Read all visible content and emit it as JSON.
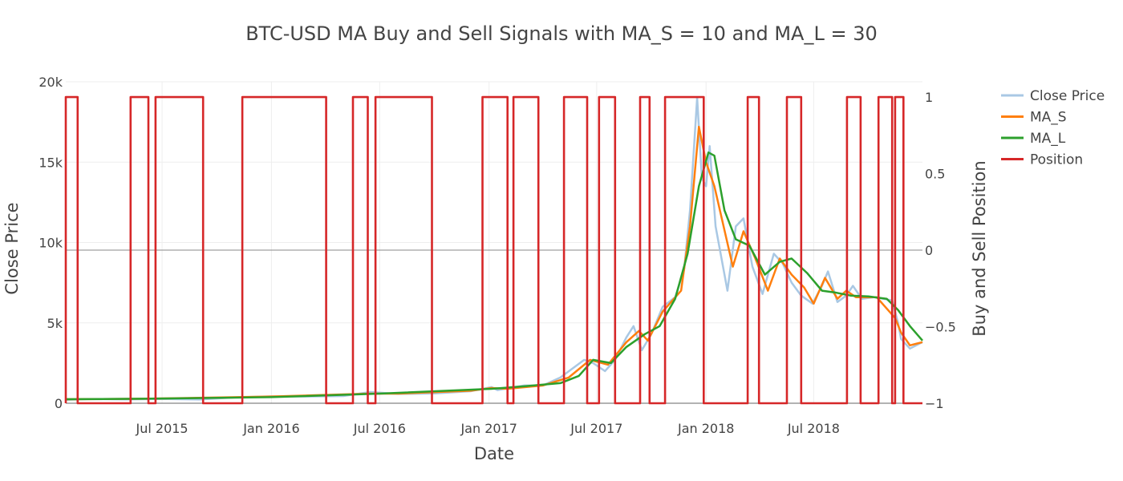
{
  "chart_data": {
    "type": "line",
    "title": "BTC-USD MA Buy and Sell Signals with MA_S = 10 and MA_L = 30",
    "xlabel": "Date",
    "ylabel": "Close Price",
    "y2label": "Buy and Sell Position",
    "xlim": [
      "2015-01-20",
      "2018-12-31"
    ],
    "ylim": [
      0,
      20000
    ],
    "y2lim": [
      -1,
      1.1
    ],
    "x_ticks": [
      "Jul 2015",
      "Jan 2016",
      "Jul 2016",
      "Jan 2017",
      "Jul 2017",
      "Jan 2018",
      "Jul 2018"
    ],
    "y_ticks": [
      "0",
      "5k",
      "10k",
      "15k",
      "20k"
    ],
    "y2_ticks": [
      "−1",
      "−0.5",
      "0",
      "0.5",
      "1"
    ],
    "grid": true,
    "legend": "right",
    "colors": {
      "close": "#a9c8e4",
      "ma_s": "#ff7f0e",
      "ma_l": "#2ca02c",
      "position": "#d62728"
    },
    "series": [
      {
        "name": "Close Price",
        "axis": "y",
        "x": [
          "2015-01-20",
          "2015-03-01",
          "2015-05-01",
          "2015-07-01",
          "2015-09-01",
          "2015-11-01",
          "2016-01-01",
          "2016-03-01",
          "2016-05-01",
          "2016-06-15",
          "2016-08-01",
          "2016-10-01",
          "2016-12-01",
          "2017-01-05",
          "2017-01-15",
          "2017-03-01",
          "2017-04-01",
          "2017-05-01",
          "2017-06-10",
          "2017-06-25",
          "2017-07-15",
          "2017-08-01",
          "2017-08-20",
          "2017-09-01",
          "2017-09-15",
          "2017-10-01",
          "2017-10-20",
          "2017-11-10",
          "2017-11-25",
          "2017-12-05",
          "2017-12-17",
          "2017-12-25",
          "2018-01-01",
          "2018-01-07",
          "2018-01-17",
          "2018-02-06",
          "2018-02-20",
          "2018-03-05",
          "2018-03-20",
          "2018-04-06",
          "2018-04-25",
          "2018-05-10",
          "2018-05-25",
          "2018-06-10",
          "2018-06-29",
          "2018-07-15",
          "2018-07-25",
          "2018-08-10",
          "2018-08-25",
          "2018-09-05",
          "2018-09-20",
          "2018-10-10",
          "2018-11-10",
          "2018-11-20",
          "2018-11-25",
          "2018-12-10",
          "2018-12-31"
        ],
        "values": [
          210,
          260,
          240,
          270,
          230,
          360,
          430,
          420,
          450,
          700,
          580,
          610,
          750,
          1000,
          820,
          1100,
          1100,
          1600,
          2700,
          2500,
          2000,
          2700,
          4100,
          4800,
          3300,
          4300,
          6000,
          6600,
          8300,
          12000,
          19000,
          14000,
          13500,
          16000,
          11000,
          7000,
          11000,
          11500,
          8500,
          6800,
          9300,
          8700,
          7500,
          6700,
          6200,
          7300,
          8200,
          6300,
          6700,
          7300,
          6500,
          6600,
          6400,
          5000,
          4000,
          3400,
          3800
        ]
      },
      {
        "name": "MA_S",
        "axis": "y",
        "x": [
          "2015-01-20",
          "2015-06-01",
          "2016-01-01",
          "2016-06-15",
          "2016-08-01",
          "2016-12-01",
          "2017-01-05",
          "2017-02-01",
          "2017-04-01",
          "2017-05-15",
          "2017-06-20",
          "2017-07-20",
          "2017-08-20",
          "2017-09-10",
          "2017-09-25",
          "2017-10-20",
          "2017-11-20",
          "2017-12-05",
          "2017-12-20",
          "2018-01-01",
          "2018-01-15",
          "2018-02-15",
          "2018-03-05",
          "2018-03-25",
          "2018-04-15",
          "2018-05-05",
          "2018-05-25",
          "2018-06-15",
          "2018-07-01",
          "2018-07-20",
          "2018-08-10",
          "2018-08-25",
          "2018-09-10",
          "2018-10-15",
          "2018-11-15",
          "2018-11-25",
          "2018-12-10",
          "2018-12-31"
        ],
        "values": [
          250,
          280,
          420,
          600,
          600,
          780,
          950,
          900,
          1100,
          1600,
          2700,
          2400,
          3800,
          4500,
          3900,
          5700,
          7000,
          11000,
          17200,
          15000,
          13500,
          8500,
          10700,
          9000,
          7000,
          9000,
          8000,
          7200,
          6200,
          7800,
          6500,
          7000,
          6600,
          6600,
          5300,
          4400,
          3600,
          3800
        ]
      },
      {
        "name": "MA_L",
        "axis": "y",
        "x": [
          "2015-01-20",
          "2015-06-01",
          "2016-01-01",
          "2016-07-01",
          "2017-01-05",
          "2017-03-01",
          "2017-05-01",
          "2017-06-01",
          "2017-06-25",
          "2017-07-25",
          "2017-08-20",
          "2017-09-20",
          "2017-10-15",
          "2017-11-10",
          "2017-12-01",
          "2017-12-20",
          "2018-01-05",
          "2018-01-15",
          "2018-02-01",
          "2018-02-20",
          "2018-03-15",
          "2018-04-10",
          "2018-05-05",
          "2018-05-25",
          "2018-06-20",
          "2018-07-15",
          "2018-08-05",
          "2018-09-01",
          "2018-10-01",
          "2018-11-01",
          "2018-11-20",
          "2018-12-10",
          "2018-12-31"
        ],
        "values": [
          250,
          280,
          380,
          600,
          900,
          1050,
          1250,
          1700,
          2700,
          2500,
          3500,
          4300,
          4800,
          6500,
          9300,
          13500,
          15600,
          15400,
          12000,
          10200,
          9800,
          8000,
          8800,
          9000,
          8100,
          7000,
          6900,
          6700,
          6650,
          6500,
          5800,
          4800,
          3900
        ]
      },
      {
        "name": "Position",
        "axis": "y2",
        "x": [
          "2015-01-20",
          "2015-01-20",
          "2015-02-09",
          "2015-02-09",
          "2015-05-09",
          "2015-05-09",
          "2015-06-08",
          "2015-06-08",
          "2015-06-20",
          "2015-06-20",
          "2015-09-08",
          "2015-09-08",
          "2015-11-13",
          "2015-11-13",
          "2016-04-02",
          "2016-04-02",
          "2016-05-17",
          "2016-05-17",
          "2016-06-11",
          "2016-06-11",
          "2016-06-24",
          "2016-06-24",
          "2016-09-27",
          "2016-09-27",
          "2016-12-21",
          "2016-12-21",
          "2017-02-01",
          "2017-02-01",
          "2017-02-11",
          "2017-02-11",
          "2017-03-25",
          "2017-03-25",
          "2017-05-07",
          "2017-05-07",
          "2017-06-15",
          "2017-06-15",
          "2017-07-05",
          "2017-07-05",
          "2017-08-01",
          "2017-08-01",
          "2017-09-12",
          "2017-09-12",
          "2017-09-28",
          "2017-09-28",
          "2017-10-24",
          "2017-10-24",
          "2017-12-28",
          "2017-12-28",
          "2018-03-12",
          "2018-03-12",
          "2018-03-31",
          "2018-03-31",
          "2018-05-17",
          "2018-05-17",
          "2018-06-10",
          "2018-06-10",
          "2018-08-26",
          "2018-08-26",
          "2018-09-18",
          "2018-09-18",
          "2018-10-18",
          "2018-10-18",
          "2018-11-10",
          "2018-11-10",
          "2018-11-15",
          "2018-11-15",
          "2018-11-29",
          "2018-11-29",
          "2018-12-01",
          "2018-12-01",
          "2018-12-31"
        ],
        "values": [
          -1,
          1,
          1,
          -1,
          -1,
          1,
          1,
          -1,
          -1,
          1,
          1,
          -1,
          -1,
          1,
          1,
          -1,
          -1,
          1,
          1,
          -1,
          -1,
          1,
          1,
          -1,
          -1,
          1,
          1,
          -1,
          -1,
          1,
          1,
          -1,
          -1,
          1,
          1,
          -1,
          -1,
          1,
          1,
          -1,
          -1,
          1,
          1,
          -1,
          -1,
          1,
          1,
          -1,
          -1,
          1,
          1,
          -1,
          -1,
          1,
          1,
          -1,
          -1,
          1,
          1,
          -1,
          -1,
          1,
          1,
          -1,
          -1,
          1,
          1,
          -1,
          -1,
          -1,
          -1
        ]
      }
    ]
  }
}
